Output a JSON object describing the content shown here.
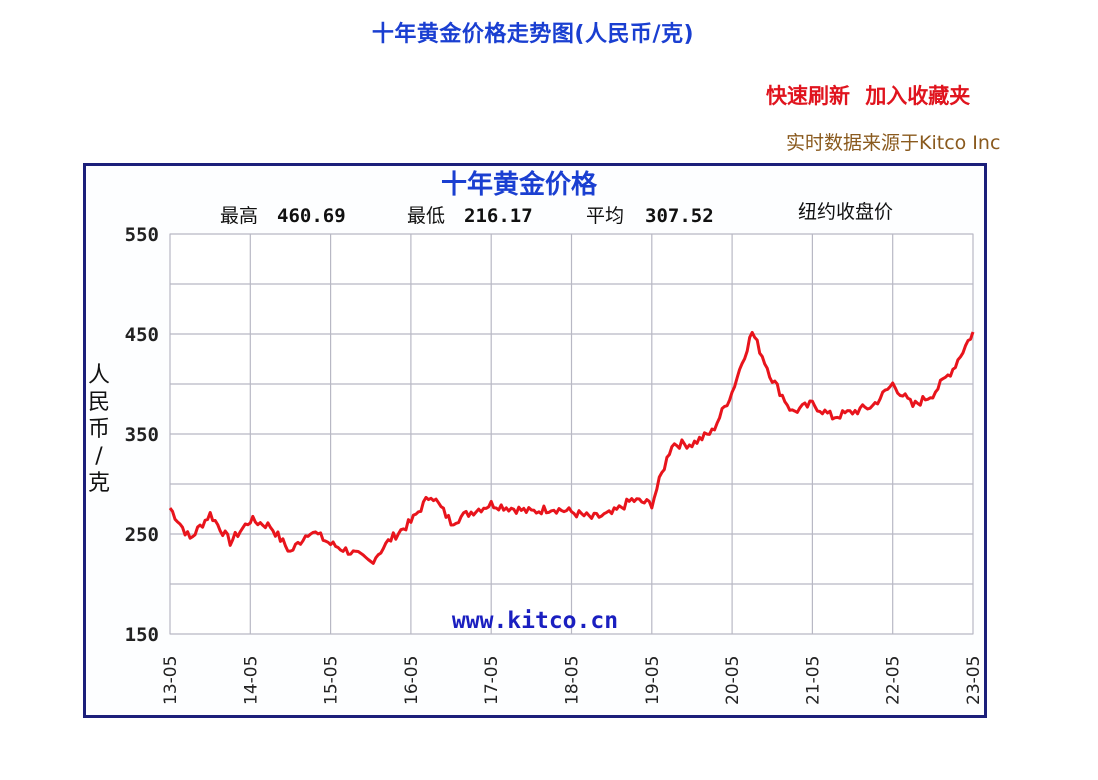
{
  "header": {
    "title": "十年黄金价格走势图(人民币/克)",
    "links": [
      {
        "label": "快速刷新"
      },
      {
        "label": "加入收藏夹"
      }
    ],
    "source": "实时数据来源于Kitco Inc"
  },
  "chart": {
    "title": "十年黄金价格",
    "stats": {
      "high_label": "最高",
      "high_value": "460.69",
      "low_label": "最低",
      "low_value": "216.17",
      "avg_label": "平均",
      "avg_value": "307.52",
      "note": "纽约收盘价"
    },
    "watermark": "www.kitco.cn",
    "ylabel": "人民币/克",
    "yticks": [
      "550",
      "450",
      "350",
      "250",
      "150"
    ],
    "xticks": [
      "13-05",
      "14-05",
      "15-05",
      "16-05",
      "17-05",
      "18-05",
      "19-05",
      "20-05",
      "21-05",
      "22-05",
      "23-05"
    ]
  },
  "colors": {
    "title": "#1a3fd1",
    "links": "#e0141e",
    "source": "#8a5a1e",
    "frame": "#1c1f7a",
    "line": "#e8141c",
    "grid": "#b8b8c4",
    "watermark": "#1a1fc0"
  },
  "chart_data": {
    "type": "line",
    "title": "十年黄金价格",
    "subtitle": "最高 460.69  最低 216.17  平均 307.52  纽约收盘价",
    "xlabel": "",
    "ylabel": "人民币/克",
    "ylim": [
      150,
      550
    ],
    "yticks": [
      150,
      250,
      350,
      450,
      550
    ],
    "grid": true,
    "legend": null,
    "annotations": [
      "www.kitco.cn"
    ],
    "x": [
      "13-05",
      "13-08",
      "13-11",
      "14-02",
      "14-05",
      "14-08",
      "14-11",
      "15-02",
      "15-05",
      "15-08",
      "15-11",
      "16-02",
      "16-05",
      "16-08",
      "16-11",
      "17-02",
      "17-05",
      "17-08",
      "17-11",
      "18-02",
      "18-05",
      "18-08",
      "18-11",
      "19-02",
      "19-05",
      "19-08",
      "19-11",
      "20-02",
      "20-05",
      "20-08",
      "20-11",
      "21-02",
      "21-05",
      "21-08",
      "21-11",
      "22-02",
      "22-05",
      "22-08",
      "22-11",
      "23-02",
      "23-05"
    ],
    "series": [
      {
        "name": "黄金价格(人民币/克)",
        "values": [
          276,
          245,
          270,
          242,
          264,
          258,
          232,
          254,
          240,
          232,
          222,
          245,
          262,
          290,
          262,
          272,
          280,
          276,
          272,
          276,
          272,
          266,
          270,
          284,
          280,
          340,
          340,
          352,
          392,
          452,
          405,
          372,
          380,
          367,
          372,
          378,
          400,
          378,
          390,
          415,
          452
        ]
      }
    ]
  }
}
